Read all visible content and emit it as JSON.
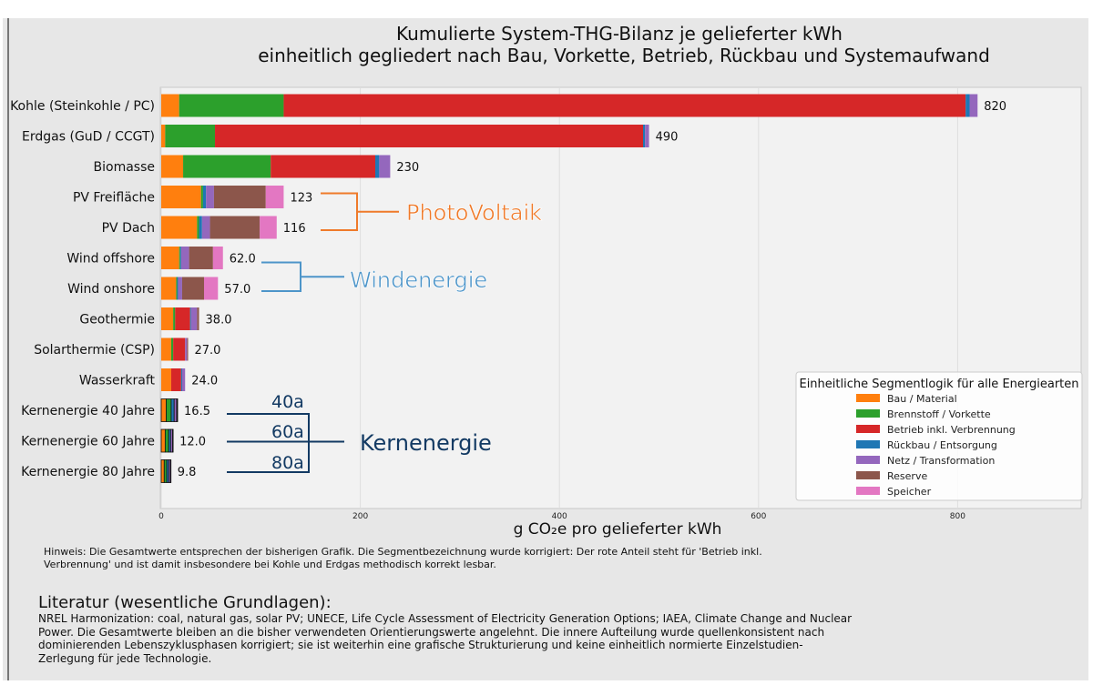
{
  "chart_data": {
    "type": "bar",
    "orientation": "horizontal",
    "stacked": true,
    "title": "Kumulierte System-THG-Bilanz je gelieferter kWh",
    "subtitle": "einheitlich gegliedert nach Bau, Vorkette, Betrieb, Rückbau und Systemaufwand",
    "xlabel": "g CO₂e pro gelieferter kWh",
    "xlim": [
      0,
      930
    ],
    "x_ticks": [
      "0",
      "200",
      "400",
      "600",
      "800"
    ],
    "grid": "vertical",
    "categories": [
      "Kohle (Steinkohle / PC)",
      "Erdgas (GuD / CCGT)",
      "Biomasse",
      "PV Freifläche",
      "PV Dach",
      "Wind offshore",
      "Wind onshore",
      "Geothermie",
      "Solarthermie (CSP)",
      "Wasserkraft",
      "Kernenergie 40 Jahre",
      "Kernenergie 60 Jahre",
      "Kernenergie 80 Jahre"
    ],
    "totals": [
      820,
      490,
      230,
      123,
      116,
      62,
      57,
      38,
      27,
      24,
      16.5,
      12,
      9.8
    ],
    "total_labels": [
      "820",
      "490",
      "230",
      "123",
      "116",
      "62.0",
      "57.0",
      "38.0",
      "27.0",
      "24.0",
      "16.5",
      "12.0",
      "9.8"
    ],
    "series": [
      {
        "name": "Bau / Material",
        "color": "#ff7f0e",
        "values": [
          18,
          4,
          22,
          40,
          36,
          18,
          15,
          12,
          10,
          10,
          5,
          4,
          3
        ]
      },
      {
        "name": "Brennstoff / Vorkette",
        "color": "#2ca02c",
        "values": [
          105,
          50,
          88,
          2,
          2,
          1,
          1,
          2,
          2,
          0,
          5,
          3.5,
          2.5
        ]
      },
      {
        "name": "Betrieb inkl. Verbrennung",
        "color": "#d62728",
        "values": [
          685,
          430,
          105,
          0,
          0,
          0,
          0,
          15,
          12,
          10,
          0,
          0,
          0
        ]
      },
      {
        "name": "Rückbau / Entsorgung",
        "color": "#1f77b4",
        "values": [
          4,
          2,
          4,
          3,
          3,
          1,
          1,
          1,
          0,
          1,
          3,
          2,
          2
        ]
      },
      {
        "name": "Netz / Transformation",
        "color": "#9467bd",
        "values": [
          8,
          4,
          11,
          8,
          8,
          8,
          4,
          6,
          2,
          3,
          2.5,
          2,
          1.8
        ]
      },
      {
        "name": "Reserve",
        "color": "#8c564b",
        "values": [
          0,
          0,
          0,
          52,
          50,
          24,
          22,
          2,
          1,
          0,
          0.5,
          0.5,
          0.5
        ]
      },
      {
        "name": "Speicher",
        "color": "#e377c2",
        "values": [
          0,
          0,
          0,
          18,
          17,
          10,
          14,
          0,
          0,
          0,
          0.5,
          0,
          0
        ]
      }
    ],
    "legend": {
      "title": "Einheitliche Segmentlogik für alle Energiearten",
      "position": "lower-right"
    },
    "annotations": [
      {
        "label": "PhotoVoltaik",
        "color": "#ef7a2a",
        "categories": [
          "PV Freifläche",
          "PV Dach"
        ]
      },
      {
        "label": "Windenergie",
        "color": "#4d95c9",
        "categories": [
          "Wind offshore",
          "Wind onshore"
        ]
      },
      {
        "label": "Kernenergie",
        "color": "#133a63",
        "categories": [
          "Kernenergie 40 Jahre",
          "Kernenergie 60 Jahre",
          "Kernenergie 80 Jahre"
        ],
        "sublabels": [
          "40a",
          "60a",
          "80a"
        ]
      }
    ]
  },
  "note": "Hinweis: Die Gesamtwerte entsprechen der bisherigen Grafik. Die Segmentbezeichnung wurde korrigiert: Der rote Anteil steht für 'Betrieb inkl. Verbrennung' und ist damit insbesondere bei Kohle und Erdgas methodisch korrekt lesbar.",
  "literature": {
    "heading": "Literatur (wesentliche Grundlagen):",
    "body": "NREL Harmonization: coal, natural gas, solar PV; UNECE, Life Cycle Assessment of Electricity Generation Options; IAEA, Climate Change and Nuclear Power. Die Gesamtwerte bleiben an die bisher verwendeten Orientierungswerte angelehnt. Die innere Aufteilung wurde quellenkonsistent nach dominierenden Lebenszyklusphasen korrigiert; sie ist weiterhin eine grafische Strukturierung und keine einheitlich normierte Einzelstudien-Zerlegung für jede Technologie."
  }
}
